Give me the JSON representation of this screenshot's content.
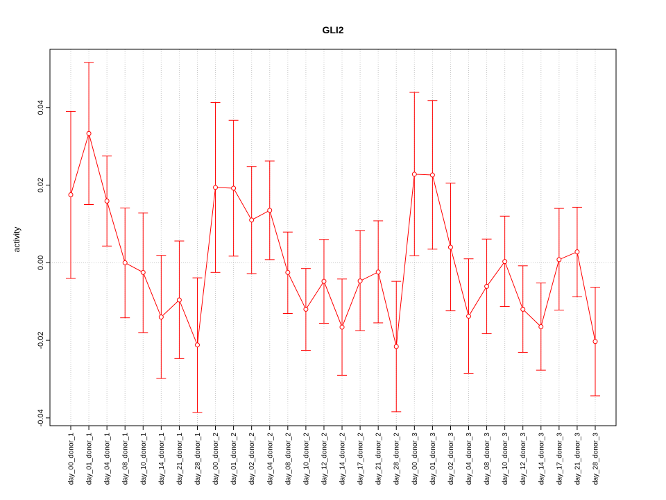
{
  "chart_data": {
    "type": "line",
    "title": "GLI2",
    "xlabel": "",
    "ylabel": "activity",
    "ylim": [
      -0.042,
      0.055
    ],
    "yticks": [
      -0.04,
      -0.02,
      0.0,
      0.02,
      0.04
    ],
    "ytick_labels": [
      "-0.04",
      "-0.02",
      "0.00",
      "0.02",
      "0.04"
    ],
    "grid": "dotted",
    "categories": [
      "day_00_donor_1",
      "day_01_donor_1",
      "day_04_donor_1",
      "day_08_donor_1",
      "day_10_donor_1",
      "day_14_donor_1",
      "day_21_donor_1",
      "day_28_donor_1",
      "day_00_donor_2",
      "day_01_donor_2",
      "day_02_donor_2",
      "day_04_donor_2",
      "day_08_donor_2",
      "day_10_donor_2",
      "day_12_donor_2",
      "day_14_donor_2",
      "day_17_donor_2",
      "day_21_donor_2",
      "day_28_donor_2",
      "day_00_donor_3",
      "day_01_donor_3",
      "day_02_donor_3",
      "day_04_donor_3",
      "day_08_donor_3",
      "day_10_donor_3",
      "day_12_donor_3",
      "day_14_donor_3",
      "day_17_donor_3",
      "day_21_donor_3",
      "day_28_donor_3"
    ],
    "series": [
      {
        "color": "#ff0000",
        "values": [
          0.0175,
          0.0333,
          0.0159,
          0.0,
          -0.0025,
          -0.014,
          -0.0096,
          -0.0212,
          0.0194,
          0.0192,
          0.011,
          0.0135,
          -0.0025,
          -0.012,
          -0.0048,
          -0.0166,
          -0.0047,
          -0.0024,
          -0.0216,
          0.0228,
          0.0226,
          0.004,
          -0.0138,
          -0.0061,
          0.0003,
          -0.012,
          -0.0165,
          0.0008,
          0.0028,
          -0.0203
        ],
        "lower": [
          -0.004,
          0.015,
          0.0043,
          -0.0142,
          -0.018,
          -0.0298,
          -0.0247,
          -0.0386,
          -0.0025,
          0.0017,
          -0.0028,
          0.0008,
          -0.0131,
          -0.0226,
          -0.0156,
          -0.029,
          -0.0175,
          -0.0155,
          -0.0384,
          0.0018,
          0.0035,
          -0.0124,
          -0.0285,
          -0.0183,
          -0.0113,
          -0.0231,
          -0.0277,
          -0.0122,
          -0.0088,
          -0.0343
        ],
        "upper": [
          0.039,
          0.0516,
          0.0275,
          0.0141,
          0.0128,
          0.0019,
          0.0056,
          -0.0039,
          0.0413,
          0.0367,
          0.0248,
          0.0262,
          0.0079,
          -0.0015,
          0.006,
          -0.0042,
          0.0083,
          0.0108,
          -0.0048,
          0.0439,
          0.0418,
          0.0205,
          0.001,
          0.0061,
          0.012,
          -0.0008,
          -0.0052,
          0.014,
          0.0143,
          -0.0063
        ]
      }
    ]
  }
}
